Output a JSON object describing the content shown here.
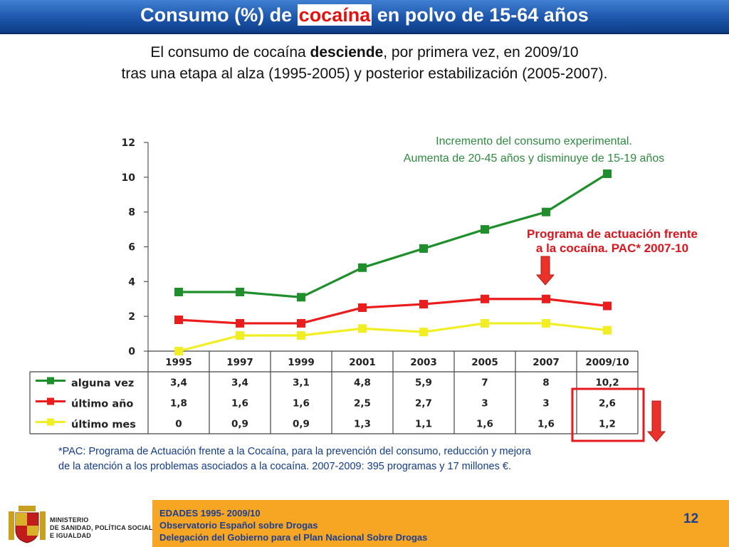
{
  "header": {
    "title_before": "Consumo (%) de ",
    "title_highlight": "cocaína",
    "title_after": " en polvo de 15-64 años"
  },
  "subtitle": {
    "line1_before": "El consumo de cocaína ",
    "line1_bold": "desciende",
    "line1_after": ", por primera vez, en 2009/10",
    "line2": "tras una etapa al alza (1995-2005) y posterior estabilización (2005-2007)."
  },
  "annotations": {
    "green_line1": "Incremento del consumo experimental.",
    "green_line2": "Aumenta de 20-45 años y disminuye de 15-19 años",
    "red_line1": "Programa de actuación frente",
    "red_line2": "a la cocaína. PAC* 2007-10"
  },
  "colors": {
    "accent_red": "#e2130f",
    "arrow_red": "#e8322a",
    "green_text": "#2d8a3e",
    "highlight_box": "#e3191d"
  },
  "chart_data": {
    "type": "line",
    "categories": [
      "1995",
      "1997",
      "1999",
      "2001",
      "2003",
      "2005",
      "2007",
      "2009/10"
    ],
    "ylim": [
      0,
      12
    ],
    "yticks": [
      "0",
      "2",
      "4",
      "6",
      "8",
      "10",
      "12"
    ],
    "grid": false,
    "legend_placement": "left of data table",
    "series": [
      {
        "name": "alguna vez",
        "color": "#1e8f2a",
        "values": [
          3.4,
          3.4,
          3.1,
          4.8,
          5.9,
          7,
          8,
          10.2
        ],
        "labels": [
          "3,4",
          "3,4",
          "3,1",
          "4,8",
          "5,9",
          "7",
          "8",
          "10,2"
        ]
      },
      {
        "name": "último año",
        "color": "#ea1c1c",
        "values": [
          1.8,
          1.6,
          1.6,
          2.5,
          2.7,
          3,
          3,
          2.6
        ],
        "labels": [
          "1,8",
          "1,6",
          "1,6",
          "2,5",
          "2,7",
          "3",
          "3",
          "2,6"
        ]
      },
      {
        "name": "último mes",
        "color": "#f2ee24",
        "values": [
          0,
          0.9,
          0.9,
          1.3,
          1.1,
          1.6,
          1.6,
          1.2
        ],
        "labels": [
          "0",
          "0,9",
          "0,9",
          "1,3",
          "1,1",
          "1,6",
          "1,6",
          "1,2"
        ]
      }
    ]
  },
  "footnote": {
    "line1": "*PAC: Programa de Actuación frente a la Cocaína, para la prevención del consumo, reducción y mejora",
    "line2": "de la atención a los problemas asociados a la cocaína. 2007-2009: 395 programas y 17 millones €."
  },
  "footer": {
    "ministry_line1": "MINISTERIO",
    "ministry_line2": "DE SANIDAD, POLÍTICA SOCIAL",
    "ministry_line3": "E IGUALDAD",
    "line1": "EDADES 1995- 2009/10",
    "line2": "Observatorio Español sobre Drogas",
    "line3": "Delegación del Gobierno para el Plan Nacional Sobre Drogas",
    "page": "12"
  }
}
